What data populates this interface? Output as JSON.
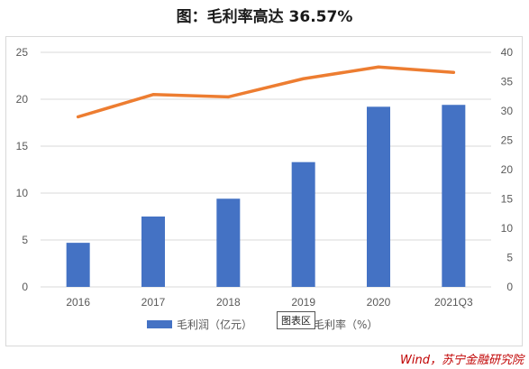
{
  "title": "图：毛利率高达 36.57%",
  "tooltip_label": "图表区",
  "source": "Wind，苏宁金融研究院",
  "colors": {
    "bar": "#4472c4",
    "line": "#ed7d31",
    "grid": "#d9d9d9",
    "axis_text": "#595959"
  },
  "chart_data": {
    "type": "bar",
    "categories": [
      "2016",
      "2017",
      "2018",
      "2019",
      "2020",
      "2021Q3"
    ],
    "series": [
      {
        "name": "毛利润（亿元）",
        "type": "bar",
        "axis": "left",
        "values": [
          4.7,
          7.5,
          9.4,
          13.3,
          19.2,
          19.4
        ]
      },
      {
        "name": "毛利率（%）",
        "type": "line",
        "axis": "right",
        "values": [
          29.0,
          32.8,
          32.4,
          35.5,
          37.5,
          36.57
        ]
      }
    ],
    "y_left": {
      "min": 0,
      "max": 25,
      "ticks": [
        "0",
        "5",
        "10",
        "15",
        "20",
        "25"
      ]
    },
    "y_right": {
      "min": 0,
      "max": 40,
      "ticks": [
        "0",
        "5",
        "10",
        "15",
        "20",
        "25",
        "30",
        "35",
        "40"
      ]
    },
    "grid": true,
    "legend_position": "bottom"
  }
}
